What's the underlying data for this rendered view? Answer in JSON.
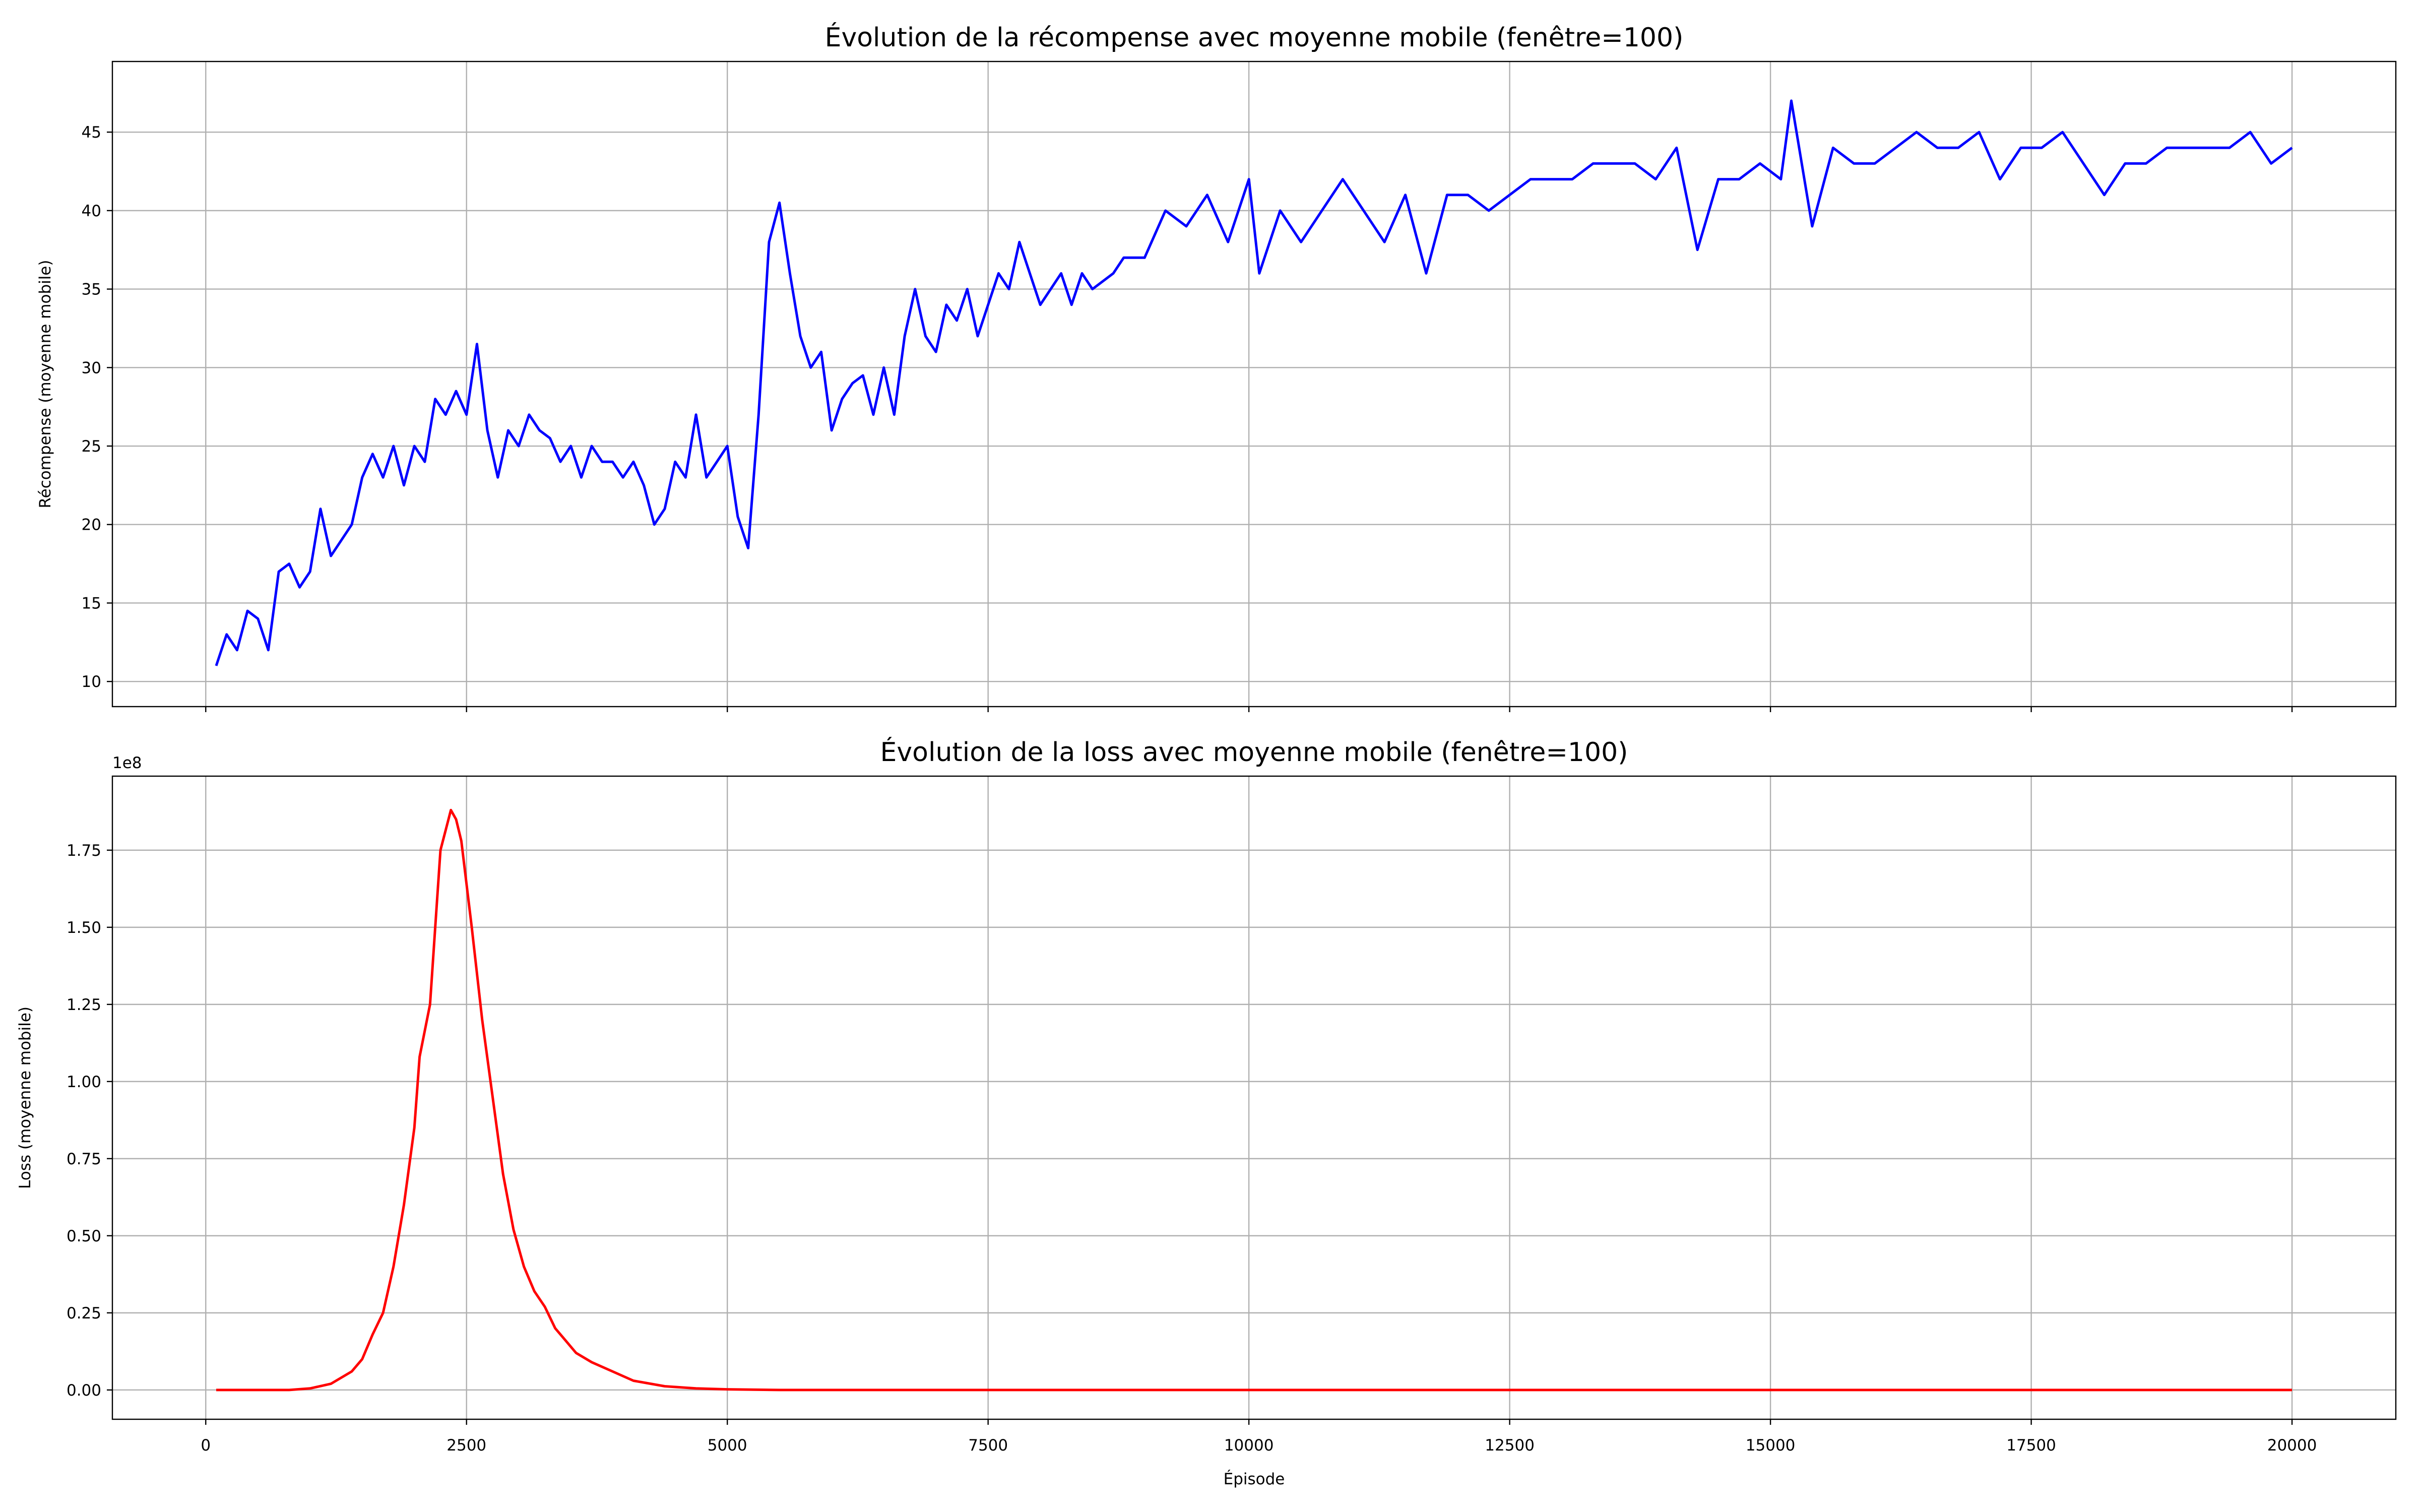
{
  "chart_data": [
    {
      "type": "line",
      "title": "Évolution de la récompense avec moyenne mobile (fenêtre=100)",
      "y_label": "Récompense (moyenne mobile)",
      "show_xtick_labels": false,
      "grid": true,
      "xlim": [
        -895,
        20995
      ],
      "xticks": [
        0,
        2500,
        5000,
        7500,
        10000,
        12500,
        15000,
        17500,
        20000
      ],
      "ylim": [
        8.4,
        49.5
      ],
      "yticks": [
        10,
        15,
        20,
        25,
        30,
        35,
        40,
        45
      ],
      "x": [
        100,
        200,
        300,
        400,
        500,
        600,
        700,
        800,
        900,
        1000,
        1100,
        1200,
        1300,
        1400,
        1500,
        1600,
        1700,
        1800,
        1900,
        2000,
        2100,
        2200,
        2300,
        2400,
        2500,
        2600,
        2700,
        2800,
        2900,
        3000,
        3100,
        3200,
        3300,
        3400,
        3500,
        3600,
        3700,
        3800,
        3900,
        4000,
        4100,
        4200,
        4300,
        4400,
        4500,
        4600,
        4700,
        4800,
        4900,
        5000,
        5100,
        5200,
        5300,
        5400,
        5500,
        5600,
        5700,
        5800,
        5900,
        6000,
        6100,
        6200,
        6300,
        6400,
        6500,
        6600,
        6700,
        6800,
        6900,
        7000,
        7100,
        7200,
        7300,
        7400,
        7500,
        7600,
        7700,
        7800,
        7900,
        8000,
        8100,
        8200,
        8300,
        8400,
        8500,
        8700,
        8800,
        9000,
        9200,
        9400,
        9600,
        9800,
        10000,
        10100,
        10300,
        10500,
        10700,
        10900,
        11100,
        11300,
        11500,
        11700,
        11900,
        12100,
        12300,
        12500,
        12700,
        12900,
        13100,
        13300,
        13500,
        13700,
        13900,
        14100,
        14300,
        14500,
        14700,
        14900,
        15100,
        15200,
        15400,
        15600,
        15800,
        16000,
        16200,
        16400,
        16600,
        16800,
        17000,
        17200,
        17400,
        17600,
        17800,
        18000,
        18200,
        18400,
        18600,
        18800,
        19000,
        19200,
        19400,
        19600,
        19800,
        20000
      ],
      "series": [
        {
          "name": "Récompense",
          "color": "#0000ff",
          "values": [
            11,
            13,
            12,
            14.5,
            14,
            12,
            17,
            17.5,
            16,
            17,
            21,
            18,
            19,
            20,
            23,
            24.5,
            23,
            25,
            22.5,
            25,
            24,
            28,
            27,
            28.5,
            27,
            31.5,
            26,
            23,
            26,
            25,
            27,
            26,
            25.5,
            24,
            25,
            23,
            25,
            24,
            24,
            23,
            24,
            22.5,
            20,
            21,
            24,
            23,
            27,
            23,
            24,
            25,
            20.5,
            18.5,
            27,
            38,
            40.5,
            36,
            32,
            30,
            31,
            26,
            28,
            29,
            29.5,
            27,
            30,
            27,
            32,
            35,
            32,
            31,
            34,
            33,
            35,
            32,
            34,
            36,
            35,
            38,
            36,
            34,
            35,
            36,
            34,
            36,
            35,
            36,
            37,
            37,
            40,
            39,
            41,
            38,
            42,
            36,
            40,
            38,
            40,
            42,
            40,
            38,
            41,
            36,
            41,
            41,
            40,
            41,
            42,
            42,
            42,
            43,
            43,
            43,
            42,
            44,
            37.5,
            42,
            42,
            43,
            42,
            47,
            39,
            44,
            43,
            43,
            44,
            45,
            44,
            44,
            45,
            42,
            44,
            44,
            45,
            43,
            41,
            43,
            43,
            44,
            44,
            44,
            44,
            45,
            43,
            44
          ]
        }
      ]
    },
    {
      "type": "line",
      "title": "Évolution de la loss avec moyenne mobile (fenêtre=100)",
      "y_label": "Loss (moyenne mobile)",
      "x_label": "Épisode",
      "offset_label": "1e8",
      "show_xtick_labels": true,
      "grid": true,
      "xlim": [
        -895,
        20995
      ],
      "xticks": [
        0,
        2500,
        5000,
        7500,
        10000,
        12500,
        15000,
        17500,
        20000
      ],
      "ylim": [
        -0.095,
        1.99
      ],
      "yticks": [
        {
          "value": 0,
          "label": "0.00"
        },
        0.25,
        {
          "value": 0.5,
          "label": "0.50"
        },
        0.75,
        {
          "value": 1,
          "label": "1.00"
        },
        1.25,
        {
          "value": 1.5,
          "label": "1.50"
        },
        1.75
      ],
      "x": [
        100,
        800,
        1000,
        1200,
        1400,
        1500,
        1600,
        1700,
        1800,
        1900,
        2000,
        2050,
        2150,
        2200,
        2250,
        2350,
        2400,
        2450,
        2550,
        2650,
        2750,
        2850,
        2950,
        3050,
        3150,
        3250,
        3350,
        3450,
        3550,
        3700,
        3900,
        4100,
        4400,
        4700,
        5000,
        5500,
        20000
      ],
      "series": [
        {
          "name": "Loss",
          "color": "#ff0000",
          "values": [
            0,
            0,
            0.005,
            0.02,
            0.06,
            0.1,
            0.18,
            0.25,
            0.4,
            0.6,
            0.85,
            1.08,
            1.25,
            1.5,
            1.75,
            1.88,
            1.85,
            1.78,
            1.5,
            1.2,
            0.95,
            0.7,
            0.52,
            0.4,
            0.32,
            0.27,
            0.2,
            0.16,
            0.12,
            0.09,
            0.06,
            0.03,
            0.012,
            0.005,
            0.002,
            0,
            0
          ]
        }
      ]
    }
  ]
}
